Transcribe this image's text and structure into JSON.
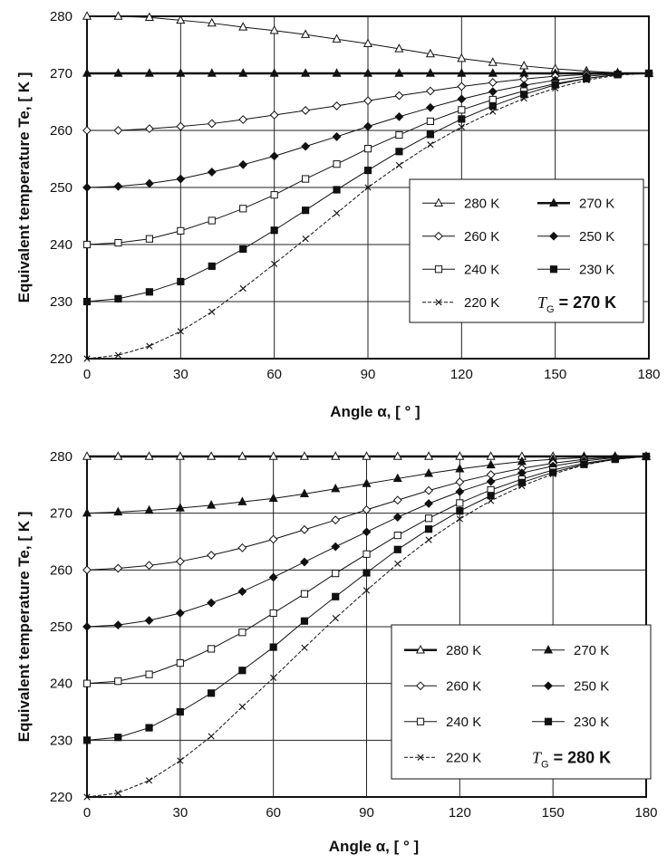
{
  "chart_data": [
    {
      "type": "line",
      "xlabel": "Angle α, [ ° ]",
      "ylabel": "Equivalent temperature Te, [ K ]",
      "xlim": [
        0,
        180
      ],
      "ylim": [
        220,
        280
      ],
      "xticks": [
        "0",
        "30",
        "60",
        "90",
        "120",
        "150",
        "180"
      ],
      "yticks": [
        "220",
        "230",
        "240",
        "250",
        "260",
        "270",
        "280"
      ],
      "grid": true,
      "legend_position": "lower-right",
      "annotation": {
        "symbol": "T",
        "subscript": "G",
        "text": "= 270 K"
      },
      "x": [
        0,
        10,
        20,
        30,
        40,
        50,
        60,
        70,
        80,
        90,
        100,
        110,
        120,
        130,
        140,
        150,
        160,
        170,
        180
      ],
      "series": [
        {
          "name": "280 K",
          "marker": "triangle-open",
          "values": [
            280,
            280,
            279.8,
            279.3,
            278.8,
            278.1,
            277.5,
            276.8,
            276,
            275.2,
            274.3,
            273.4,
            272.6,
            271.9,
            271.3,
            270.8,
            270.4,
            270.1,
            270
          ]
        },
        {
          "name": "270 K",
          "marker": "triangle-filled",
          "values": [
            270,
            270,
            270,
            270,
            270,
            270,
            270,
            270,
            270,
            270,
            270,
            270,
            270,
            270,
            270,
            270,
            270,
            270,
            270
          ]
        },
        {
          "name": "260 K",
          "marker": "diamond-open",
          "values": [
            260,
            260,
            260.3,
            260.7,
            261.2,
            261.9,
            262.7,
            263.5,
            264.3,
            265.2,
            266.1,
            266.9,
            267.7,
            268.4,
            269,
            269.5,
            269.8,
            270,
            270
          ]
        },
        {
          "name": "250 K",
          "marker": "diamond-filled",
          "values": [
            250,
            250.2,
            250.7,
            251.5,
            252.7,
            254,
            255.5,
            257.2,
            258.9,
            260.7,
            262.4,
            264,
            265.5,
            266.8,
            267.9,
            268.8,
            269.5,
            269.9,
            270
          ]
        },
        {
          "name": "240 K",
          "marker": "square-open",
          "values": [
            240,
            240.3,
            241,
            242.4,
            244.2,
            246.3,
            248.7,
            251.5,
            254.1,
            256.8,
            259.2,
            261.6,
            263.6,
            265.4,
            266.9,
            268.2,
            269.1,
            269.8,
            270
          ]
        },
        {
          "name": "230 K",
          "marker": "square-filled",
          "values": [
            230,
            230.5,
            231.7,
            233.5,
            236.2,
            239.2,
            242.5,
            246,
            249.6,
            253,
            256.3,
            259.3,
            262,
            264.3,
            266.3,
            268,
            269.1,
            269.8,
            270
          ]
        },
        {
          "name": "220 K",
          "marker": "x",
          "values": [
            220,
            220.6,
            222.2,
            224.8,
            228.2,
            232.3,
            236.6,
            241,
            245.5,
            250,
            253.9,
            257.5,
            260.6,
            263.3,
            265.6,
            267.4,
            268.8,
            269.7,
            270
          ]
        }
      ]
    },
    {
      "type": "line",
      "xlabel": "Angle α, [ ° ]",
      "ylabel": "Equivalent temperature Te, [ K ]",
      "xlim": [
        0,
        180
      ],
      "ylim": [
        220,
        280
      ],
      "xticks": [
        "0",
        "30",
        "60",
        "90",
        "120",
        "150",
        "180"
      ],
      "yticks": [
        "220",
        "230",
        "240",
        "250",
        "260",
        "270",
        "280"
      ],
      "grid": true,
      "legend_position": "lower-right",
      "annotation": {
        "symbol": "T",
        "subscript": "G",
        "text": "= 280 K"
      },
      "x": [
        0,
        10,
        20,
        30,
        40,
        50,
        60,
        70,
        80,
        90,
        100,
        110,
        120,
        130,
        140,
        150,
        160,
        170,
        180
      ],
      "series": [
        {
          "name": "280 K",
          "marker": "triangle-open",
          "values": [
            280,
            280,
            280,
            280,
            280,
            280,
            280,
            280,
            280,
            280,
            280,
            280,
            280,
            280,
            280,
            280,
            280,
            280,
            280
          ]
        },
        {
          "name": "270 K",
          "marker": "triangle-filled",
          "values": [
            270,
            270.2,
            270.5,
            270.9,
            271.4,
            272,
            272.6,
            273.4,
            274.3,
            275.2,
            276.1,
            277,
            277.8,
            278.5,
            279.1,
            279.5,
            279.8,
            280,
            280
          ]
        },
        {
          "name": "260 K",
          "marker": "diamond-open",
          "values": [
            260,
            260.3,
            260.8,
            261.5,
            262.6,
            263.9,
            265.4,
            267.1,
            268.8,
            270.6,
            272.3,
            274,
            275.5,
            276.8,
            277.9,
            278.8,
            279.5,
            279.9,
            280
          ]
        },
        {
          "name": "250 K",
          "marker": "diamond-filled",
          "values": [
            250,
            250.3,
            251.1,
            252.4,
            254.2,
            256.2,
            258.7,
            261.4,
            264.1,
            266.7,
            269.3,
            271.7,
            273.8,
            275.6,
            277.1,
            278.3,
            279.2,
            279.8,
            280
          ]
        },
        {
          "name": "240 K",
          "marker": "square-open",
          "values": [
            240,
            240.4,
            241.6,
            243.6,
            246.1,
            249,
            252.4,
            255.8,
            259.4,
            262.8,
            266.1,
            269.1,
            271.8,
            274.1,
            276,
            277.6,
            278.8,
            279.6,
            280
          ]
        },
        {
          "name": "230 K",
          "marker": "square-filled",
          "values": [
            230,
            230.5,
            232.2,
            235,
            238.3,
            242.3,
            246.4,
            251,
            255.3,
            259.5,
            263.6,
            267.2,
            270.4,
            273.1,
            275.4,
            277.2,
            278.6,
            279.5,
            280
          ]
        },
        {
          "name": "220 K",
          "marker": "x",
          "values": [
            220,
            220.7,
            222.9,
            226.4,
            230.7,
            235.9,
            241,
            246.3,
            251.5,
            256.4,
            261.1,
            265.3,
            269,
            272.2,
            274.8,
            276.9,
            278.5,
            279.5,
            280
          ]
        }
      ]
    }
  ]
}
